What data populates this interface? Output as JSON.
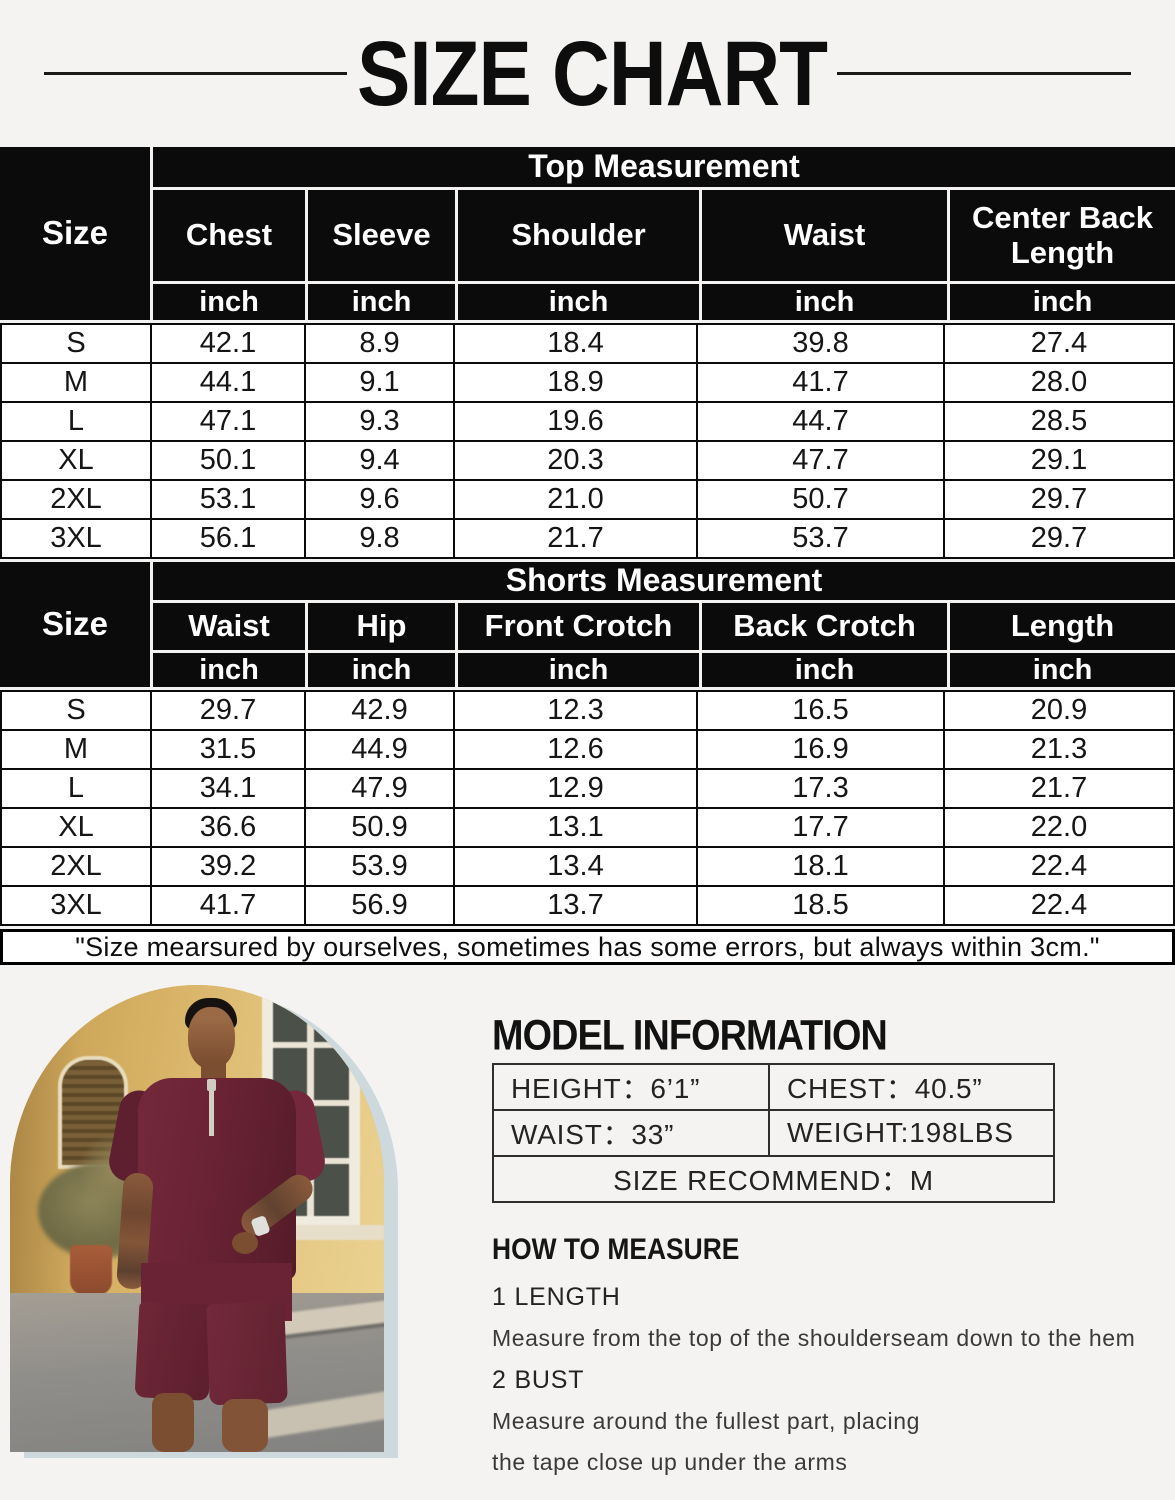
{
  "title": "SIZE CHART",
  "colors": {
    "page_bg": "#f4f3f1",
    "table_header": "#0b0b0b",
    "accent_arch": "#cdd9dd",
    "outfit": "#6a2334"
  },
  "top_table": {
    "size_header": "Size",
    "group_header": "Top Measurement",
    "columns": [
      "Chest",
      "Sleeve",
      "Shoulder",
      "Waist",
      "Center Back Length"
    ],
    "unit": "inch",
    "rows": [
      {
        "size": "S",
        "values": [
          "42.1",
          "8.9",
          "18.4",
          "39.8",
          "27.4"
        ]
      },
      {
        "size": "M",
        "values": [
          "44.1",
          "9.1",
          "18.9",
          "41.7",
          "28.0"
        ]
      },
      {
        "size": "L",
        "values": [
          "47.1",
          "9.3",
          "19.6",
          "44.7",
          "28.5"
        ]
      },
      {
        "size": "XL",
        "values": [
          "50.1",
          "9.4",
          "20.3",
          "47.7",
          "29.1"
        ]
      },
      {
        "size": "2XL",
        "values": [
          "53.1",
          "9.6",
          "21.0",
          "50.7",
          "29.7"
        ]
      },
      {
        "size": "3XL",
        "values": [
          "56.1",
          "9.8",
          "21.7",
          "53.7",
          "29.7"
        ]
      }
    ]
  },
  "shorts_table": {
    "size_header": "Size",
    "group_header": "Shorts Measurement",
    "columns": [
      "Waist",
      "Hip",
      "Front Crotch",
      "Back Crotch",
      "Length"
    ],
    "unit": "inch",
    "rows": [
      {
        "size": "S",
        "values": [
          "29.7",
          "42.9",
          "12.3",
          "16.5",
          "20.9"
        ]
      },
      {
        "size": "M",
        "values": [
          "31.5",
          "44.9",
          "12.6",
          "16.9",
          "21.3"
        ]
      },
      {
        "size": "L",
        "values": [
          "34.1",
          "47.9",
          "12.9",
          "17.3",
          "21.7"
        ]
      },
      {
        "size": "XL",
        "values": [
          "36.6",
          "50.9",
          "13.1",
          "17.7",
          "22.0"
        ]
      },
      {
        "size": "2XL",
        "values": [
          "39.2",
          "53.9",
          "13.4",
          "18.1",
          "22.4"
        ]
      },
      {
        "size": "3XL",
        "values": [
          "41.7",
          "56.9",
          "13.7",
          "18.5",
          "22.4"
        ]
      }
    ]
  },
  "disclaimer": "\"Size mearsured by ourselves, sometimes has some errors, but always within 3cm.\"",
  "model_info": {
    "title": "MODEL INFORMATION",
    "height": "HEIGHT：6’1”",
    "chest": "CHEST：40.5”",
    "waist": "WAIST：33”",
    "weight": "WEIGHT:198LBS",
    "size_recommend": "SIZE RECOMMEND：M"
  },
  "how_to_measure": {
    "title": "HOW TO MEASURE",
    "steps": [
      {
        "label": "1 LENGTH",
        "lines": [
          "Measure from the top of the shoulderseam down to the hem"
        ]
      },
      {
        "label": "2 BUST",
        "lines": [
          "Measure around the fullest part, placing",
          "the tape close up under the arms"
        ]
      }
    ]
  }
}
